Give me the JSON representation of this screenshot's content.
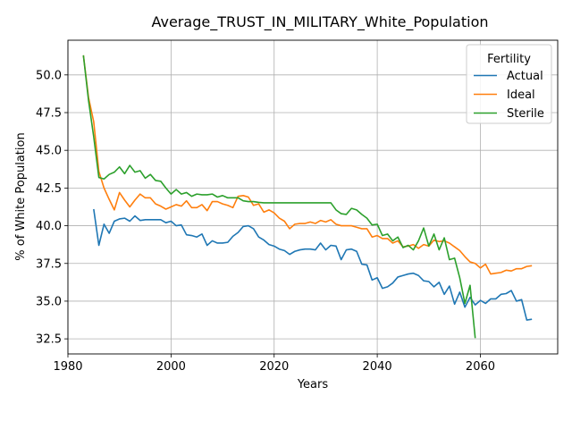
{
  "chart_data": {
    "type": "line",
    "title": "Average_TRUST_IN_MILITARY_White_Population",
    "xlabel": "Years",
    "ylabel": "% of White Population",
    "xlim": [
      1980,
      2075
    ],
    "ylim": [
      31.5,
      52.3
    ],
    "xticks": [
      1980,
      2000,
      2020,
      2040,
      2060
    ],
    "yticks": [
      32.5,
      35.0,
      37.5,
      40.0,
      42.5,
      45.0,
      47.5,
      50.0
    ],
    "ytick_labels": [
      "32.5",
      "35.0",
      "37.5",
      "40.0",
      "42.5",
      "45.0",
      "47.5",
      "50.0"
    ],
    "grid": true,
    "legend": {
      "title": "Fertility",
      "placement": "top-right"
    },
    "series": [
      {
        "name": "Actual",
        "color": "#1f77b4",
        "points": [
          [
            1985,
            41.1
          ],
          [
            1986,
            38.7
          ],
          [
            1987,
            40.1
          ],
          [
            1988,
            39.5
          ],
          [
            1989,
            40.3
          ],
          [
            1990,
            40.45
          ],
          [
            1991,
            40.5
          ],
          [
            1992,
            40.3
          ],
          [
            1993,
            40.65
          ],
          [
            1994,
            40.35
          ],
          [
            1995,
            40.4
          ],
          [
            1996,
            40.4
          ],
          [
            1997,
            40.4
          ],
          [
            1998,
            40.4
          ],
          [
            1999,
            40.2
          ],
          [
            2000,
            40.3
          ],
          [
            2001,
            40.0
          ],
          [
            2002,
            40.05
          ],
          [
            2003,
            39.4
          ],
          [
            2004,
            39.35
          ],
          [
            2005,
            39.25
          ],
          [
            2006,
            39.45
          ],
          [
            2007,
            38.7
          ],
          [
            2008,
            39.0
          ],
          [
            2009,
            38.85
          ],
          [
            2010,
            38.85
          ],
          [
            2011,
            38.9
          ],
          [
            2012,
            39.3
          ],
          [
            2013,
            39.55
          ],
          [
            2014,
            39.95
          ],
          [
            2015,
            40.0
          ],
          [
            2016,
            39.8
          ],
          [
            2017,
            39.25
          ],
          [
            2018,
            39.05
          ],
          [
            2019,
            38.75
          ],
          [
            2020,
            38.65
          ],
          [
            2021,
            38.45
          ],
          [
            2022,
            38.35
          ],
          [
            2023,
            38.1
          ],
          [
            2024,
            38.3
          ],
          [
            2025,
            38.4
          ],
          [
            2026,
            38.45
          ],
          [
            2027,
            38.45
          ],
          [
            2028,
            38.4
          ],
          [
            2029,
            38.85
          ],
          [
            2030,
            38.4
          ],
          [
            2031,
            38.7
          ],
          [
            2032,
            38.65
          ],
          [
            2033,
            37.75
          ],
          [
            2034,
            38.4
          ],
          [
            2035,
            38.45
          ],
          [
            2036,
            38.3
          ],
          [
            2037,
            37.45
          ],
          [
            2038,
            37.4
          ],
          [
            2039,
            36.4
          ],
          [
            2040,
            36.55
          ],
          [
            2041,
            35.85
          ],
          [
            2042,
            35.95
          ],
          [
            2043,
            36.2
          ],
          [
            2044,
            36.6
          ],
          [
            2045,
            36.7
          ],
          [
            2046,
            36.8
          ],
          [
            2047,
            36.85
          ],
          [
            2048,
            36.7
          ],
          [
            2049,
            36.35
          ],
          [
            2050,
            36.3
          ],
          [
            2051,
            35.95
          ],
          [
            2052,
            36.25
          ],
          [
            2053,
            35.45
          ],
          [
            2054,
            36.0
          ],
          [
            2055,
            34.8
          ],
          [
            2056,
            35.6
          ],
          [
            2057,
            34.6
          ],
          [
            2058,
            35.25
          ],
          [
            2059,
            34.75
          ],
          [
            2060,
            35.05
          ],
          [
            2061,
            34.85
          ],
          [
            2062,
            35.15
          ],
          [
            2063,
            35.15
          ],
          [
            2064,
            35.45
          ],
          [
            2065,
            35.5
          ],
          [
            2066,
            35.7
          ],
          [
            2067,
            35.0
          ],
          [
            2068,
            35.1
          ],
          [
            2069,
            33.75
          ],
          [
            2070,
            33.8
          ]
        ]
      },
      {
        "name": "Ideal",
        "color": "#ff7f0e",
        "points": [
          [
            1983,
            51.3
          ],
          [
            1984,
            48.5
          ],
          [
            1985,
            46.9
          ],
          [
            1986,
            43.6
          ],
          [
            1987,
            42.5
          ],
          [
            1988,
            41.75
          ],
          [
            1989,
            41.05
          ],
          [
            1990,
            42.2
          ],
          [
            1991,
            41.7
          ],
          [
            1992,
            41.25
          ],
          [
            1993,
            41.7
          ],
          [
            1994,
            42.1
          ],
          [
            1995,
            41.85
          ],
          [
            1996,
            41.85
          ],
          [
            1997,
            41.45
          ],
          [
            1998,
            41.3
          ],
          [
            1999,
            41.1
          ],
          [
            2000,
            41.25
          ],
          [
            2001,
            41.4
          ],
          [
            2002,
            41.3
          ],
          [
            2003,
            41.65
          ],
          [
            2004,
            41.2
          ],
          [
            2005,
            41.2
          ],
          [
            2006,
            41.4
          ],
          [
            2007,
            41.0
          ],
          [
            2008,
            41.6
          ],
          [
            2009,
            41.6
          ],
          [
            2010,
            41.45
          ],
          [
            2011,
            41.35
          ],
          [
            2012,
            41.2
          ],
          [
            2013,
            41.95
          ],
          [
            2014,
            42.0
          ],
          [
            2015,
            41.9
          ],
          [
            2016,
            41.35
          ],
          [
            2017,
            41.45
          ],
          [
            2018,
            40.9
          ],
          [
            2019,
            41.05
          ],
          [
            2020,
            40.85
          ],
          [
            2021,
            40.5
          ],
          [
            2022,
            40.3
          ],
          [
            2023,
            39.8
          ],
          [
            2024,
            40.1
          ],
          [
            2025,
            40.15
          ],
          [
            2026,
            40.15
          ],
          [
            2027,
            40.25
          ],
          [
            2028,
            40.15
          ],
          [
            2029,
            40.35
          ],
          [
            2030,
            40.25
          ],
          [
            2031,
            40.4
          ],
          [
            2032,
            40.1
          ],
          [
            2033,
            40.0
          ],
          [
            2034,
            40.0
          ],
          [
            2035,
            40.0
          ],
          [
            2036,
            39.9
          ],
          [
            2037,
            39.8
          ],
          [
            2038,
            39.8
          ],
          [
            2039,
            39.25
          ],
          [
            2040,
            39.35
          ],
          [
            2041,
            39.15
          ],
          [
            2042,
            39.15
          ],
          [
            2043,
            38.85
          ],
          [
            2044,
            39.0
          ],
          [
            2045,
            38.6
          ],
          [
            2046,
            38.65
          ],
          [
            2047,
            38.75
          ],
          [
            2048,
            38.5
          ],
          [
            2049,
            38.75
          ],
          [
            2050,
            38.65
          ],
          [
            2051,
            39.05
          ],
          [
            2052,
            38.95
          ],
          [
            2053,
            39.0
          ],
          [
            2054,
            38.85
          ],
          [
            2055,
            38.6
          ],
          [
            2056,
            38.35
          ],
          [
            2057,
            37.95
          ],
          [
            2058,
            37.6
          ],
          [
            2059,
            37.5
          ],
          [
            2060,
            37.2
          ],
          [
            2061,
            37.45
          ],
          [
            2062,
            36.8
          ],
          [
            2063,
            36.85
          ],
          [
            2064,
            36.9
          ],
          [
            2065,
            37.05
          ],
          [
            2066,
            37.0
          ],
          [
            2067,
            37.15
          ],
          [
            2068,
            37.15
          ],
          [
            2069,
            37.3
          ],
          [
            2070,
            37.35
          ]
        ]
      },
      {
        "name": "Sterile",
        "color": "#2ca02c",
        "points": [
          [
            1983,
            51.3
          ],
          [
            1984,
            48.3
          ],
          [
            1985,
            45.9
          ],
          [
            1986,
            43.2
          ],
          [
            1987,
            43.1
          ],
          [
            1988,
            43.4
          ],
          [
            1989,
            43.55
          ],
          [
            1990,
            43.9
          ],
          [
            1991,
            43.45
          ],
          [
            1992,
            44.0
          ],
          [
            1993,
            43.55
          ],
          [
            1994,
            43.65
          ],
          [
            1995,
            43.15
          ],
          [
            1996,
            43.4
          ],
          [
            1997,
            43.0
          ],
          [
            1998,
            42.95
          ],
          [
            1999,
            42.5
          ],
          [
            2000,
            42.1
          ],
          [
            2001,
            42.4
          ],
          [
            2002,
            42.1
          ],
          [
            2003,
            42.2
          ],
          [
            2004,
            41.95
          ],
          [
            2005,
            42.1
          ],
          [
            2006,
            42.05
          ],
          [
            2007,
            42.05
          ],
          [
            2008,
            42.1
          ],
          [
            2009,
            41.9
          ],
          [
            2010,
            42.0
          ],
          [
            2011,
            41.85
          ],
          [
            2012,
            41.85
          ],
          [
            2013,
            41.85
          ],
          [
            2014,
            41.65
          ],
          [
            2015,
            41.6
          ],
          [
            2016,
            41.6
          ],
          [
            2017,
            41.55
          ],
          [
            2018,
            41.52
          ],
          [
            2019,
            41.52
          ],
          [
            2020,
            41.52
          ],
          [
            2021,
            41.52
          ],
          [
            2022,
            41.52
          ],
          [
            2023,
            41.52
          ],
          [
            2024,
            41.52
          ],
          [
            2025,
            41.52
          ],
          [
            2026,
            41.52
          ],
          [
            2027,
            41.52
          ],
          [
            2028,
            41.52
          ],
          [
            2029,
            41.52
          ],
          [
            2030,
            41.52
          ],
          [
            2031,
            41.52
          ],
          [
            2032,
            41.05
          ],
          [
            2033,
            40.8
          ],
          [
            2034,
            40.75
          ],
          [
            2035,
            41.15
          ],
          [
            2036,
            41.05
          ],
          [
            2037,
            40.75
          ],
          [
            2038,
            40.5
          ],
          [
            2039,
            40.05
          ],
          [
            2040,
            40.1
          ],
          [
            2041,
            39.35
          ],
          [
            2042,
            39.45
          ],
          [
            2043,
            39.0
          ],
          [
            2044,
            39.25
          ],
          [
            2045,
            38.55
          ],
          [
            2046,
            38.7
          ],
          [
            2047,
            38.4
          ],
          [
            2048,
            39.0
          ],
          [
            2049,
            39.85
          ],
          [
            2050,
            38.65
          ],
          [
            2051,
            39.45
          ],
          [
            2052,
            38.4
          ],
          [
            2053,
            39.2
          ],
          [
            2054,
            37.75
          ],
          [
            2055,
            37.85
          ],
          [
            2056,
            36.55
          ],
          [
            2057,
            34.85
          ],
          [
            2058,
            36.05
          ],
          [
            2059,
            32.55
          ]
        ]
      }
    ]
  }
}
